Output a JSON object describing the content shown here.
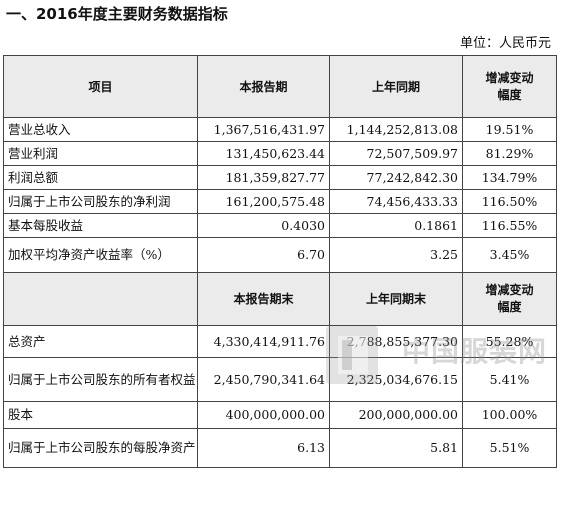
{
  "title": "一、2016年度主要财务数据指标",
  "unit": "单位：人民币元",
  "header1": {
    "item": "项目",
    "current": "本报告期",
    "prior": "上年同期",
    "change_line1": "增减变动",
    "change_line2": "幅度"
  },
  "rows1": [
    {
      "label": "营业总收入",
      "current": "1,367,516,431.97",
      "prior": "1,144,252,813.08",
      "change": "19.51%"
    },
    {
      "label": "营业利润",
      "current": "131,450,623.44",
      "prior": "72,507,509.97",
      "change": "81.29%"
    },
    {
      "label": "利润总额",
      "current": "181,359,827.77",
      "prior": "77,242,842.30",
      "change": "134.79%"
    },
    {
      "label": "归属于上市公司股东的净利润",
      "current": "161,200,575.48",
      "prior": "74,456,433.33",
      "change": "116.50%"
    },
    {
      "label": "基本每股收益",
      "current": "0.4030",
      "prior": "0.1861",
      "change": "116.55%"
    },
    {
      "label": "加权平均净资产收益率（%）",
      "current": "6.70",
      "prior": "3.25",
      "change": "3.45%"
    }
  ],
  "header2": {
    "item": "",
    "current": "本报告期末",
    "prior": "上年同期末",
    "change_line1": "增减变动",
    "change_line2": "幅度"
  },
  "rows2": [
    {
      "label": "总资产",
      "current": "4,330,414,911.76",
      "prior": "2,788,855,377.30",
      "change": "55.28%"
    },
    {
      "label": "归属于上市公司股东的所有者权益",
      "current": "2,450,790,341.64",
      "prior": "2,325,034,676.15",
      "change": "5.41%"
    },
    {
      "label": "股本",
      "current": "400,000,000.00",
      "prior": "200,000,000.00",
      "change": "100.00%"
    },
    {
      "label": "归属于上市公司股东的每股净资产",
      "current": "6.13",
      "prior": "5.81",
      "change": "5.51%"
    }
  ],
  "watermark": {
    "text": "中国服装网",
    "icon": "document-logo-icon"
  }
}
